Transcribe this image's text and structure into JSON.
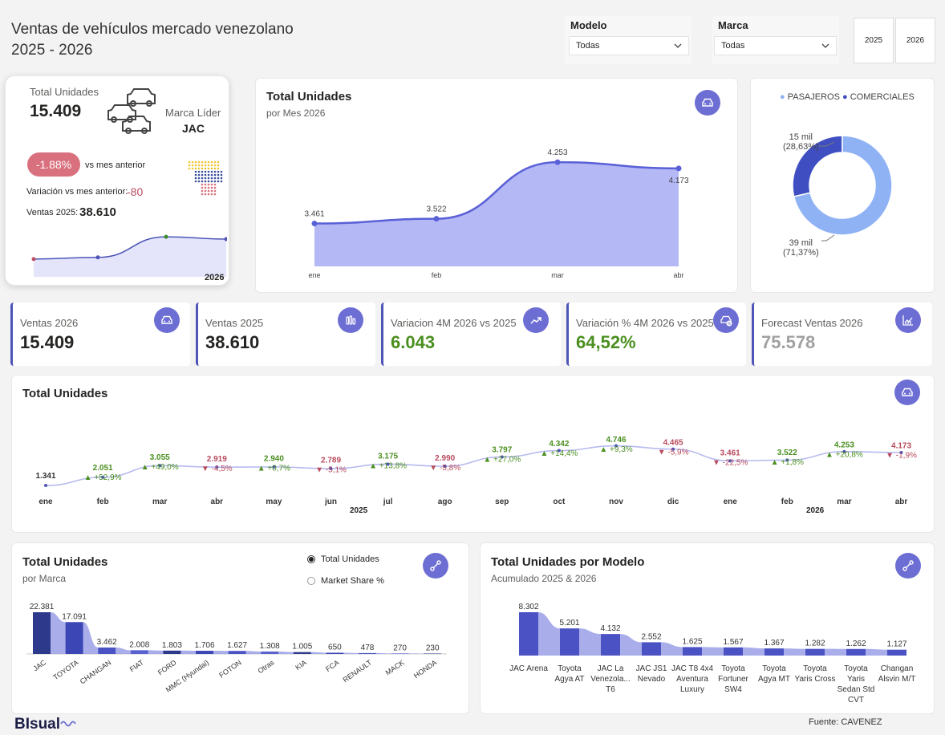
{
  "header": {
    "title_line1": "Ventas de vehículos mercado venezolano",
    "title_line2": "2025 - 2026"
  },
  "filters": {
    "modelo": {
      "label": "Modelo",
      "value": "Todas"
    },
    "marca": {
      "label": "Marca",
      "value": "Todas"
    },
    "years": [
      "2025",
      "2026"
    ]
  },
  "summary": {
    "total_label": "Total Unidades",
    "total_value": "15.409",
    "lider_label": "Marca Líder",
    "lider_value": "JAC",
    "pct_badge": "-1.88%",
    "vs_label": "vs mes anterior",
    "var_label": "Variación vs mes anterior:",
    "var_value": "-80",
    "ventas_label": "Ventas 2025:",
    "ventas_value": "38.610",
    "spark_year": "2026",
    "spark_values": [
      3461,
      3522,
      4253,
      4173
    ]
  },
  "monthly": {
    "title": "Total Unidades",
    "subtitle": "por Mes 2026",
    "labels": [
      "3.461",
      "3.522",
      "4.253",
      "4.173"
    ]
  },
  "donut": {
    "legend": [
      "PASAJEROS",
      "COMERCIALES"
    ],
    "label_comerciales_1": "15 mil",
    "label_comerciales_2": "(28,63%)",
    "label_pasajeros_1": "39 mil",
    "label_pasajeros_2": "(71,37%)"
  },
  "kpis": [
    {
      "label": "Ventas 2026",
      "value": "15.409"
    },
    {
      "label": "Ventas 2025",
      "value": "38.610"
    },
    {
      "label": "Variacion 4M 2026 vs 2025",
      "value": "6.043"
    },
    {
      "label": "Variación % 4M 2026 vs 2025",
      "value": "64,52%"
    },
    {
      "label": "Forecast Ventas 2026",
      "value": "75.578"
    }
  ],
  "timeline": {
    "title": "Total Unidades",
    "year_2025": "2025",
    "year_2026": "2026"
  },
  "brand": {
    "title": "Total Unidades",
    "subtitle": "por Marca",
    "options": [
      "Total Unidades",
      "Market Share %"
    ],
    "selected": 0
  },
  "model": {
    "title": "Total Unidades por Modelo",
    "subtitle": "Acumulado 2025 & 2026"
  },
  "footer": {
    "logo": "BIsual",
    "source": "Fuente: CAVENEZ"
  },
  "colors": {
    "accent": "#6d6ed3",
    "kpi_border": "#4d55b7",
    "area": "#b4b8f5",
    "line": "#5a60d6",
    "donut_pasajeros": "#8fb2f5",
    "donut_comerciales": "#3f4fc1",
    "positive": "#4a8f1f",
    "negative": "#b84a5c",
    "forecast": "#a0a0a0",
    "badge": "#d9707e"
  },
  "chart_data": [
    {
      "type": "area",
      "title": "Total Unidades",
      "subtitle": "por Mes 2026",
      "categories": [
        "ene",
        "feb",
        "mar",
        "abr"
      ],
      "values": [
        3461,
        3522,
        4253,
        4173
      ]
    },
    {
      "type": "pie",
      "series": [
        {
          "name": "PASAJEROS",
          "label": "39 mil",
          "value": 71.37
        },
        {
          "name": "COMERCIALES",
          "label": "15 mil",
          "value": 28.63
        }
      ]
    },
    {
      "type": "line",
      "title": "Total Unidades",
      "categories": [
        "ene",
        "feb",
        "mar",
        "abr",
        "may",
        "jun",
        "jul",
        "ago",
        "sep",
        "oct",
        "nov",
        "dic",
        "ene",
        "feb",
        "mar",
        "abr"
      ],
      "years": [
        "2025",
        "2026"
      ],
      "values": [
        1341,
        2051,
        3055,
        2919,
        2940,
        2789,
        3175,
        2990,
        3797,
        4342,
        4746,
        4465,
        3461,
        3522,
        4253,
        4173
      ],
      "value_labels": [
        "1.341",
        "2.051",
        "3.055",
        "2.919",
        "2.940",
        "2.789",
        "3.175",
        "2.990",
        "3.797",
        "4.342",
        "4.746",
        "4.465",
        "3.461",
        "3.522",
        "4.253",
        "4.173"
      ],
      "change_labels": [
        "",
        "+52,9%",
        "+49,0%",
        "-4,5%",
        "+0,7%",
        "-5,1%",
        "+13,8%",
        "-5,8%",
        "+27,0%",
        "+14,4%",
        "+9,3%",
        "-5,9%",
        "-22,5%",
        "+1,8%",
        "+20,8%",
        "-1,9%"
      ]
    },
    {
      "type": "bar",
      "title": "Total Unidades",
      "subtitle": "por Marca",
      "categories": [
        "JAC",
        "TOYOTA",
        "CHANGAN",
        "FIAT",
        "FORD",
        "MMC (Hyundai)",
        "FOTON",
        "Otras",
        "KIA",
        "FCA",
        "RENAULT",
        "MACK",
        "HONDA"
      ],
      "values": [
        22381,
        17091,
        3462,
        2008,
        1803,
        1706,
        1627,
        1308,
        1005,
        650,
        478,
        270,
        230
      ],
      "value_labels": [
        "22.381",
        "17.091",
        "3.462",
        "2.008",
        "1.803",
        "1.706",
        "1.627",
        "1.308",
        "1.005",
        "650",
        "478",
        "270",
        "230"
      ]
    },
    {
      "type": "bar",
      "title": "Total Unidades por Modelo",
      "subtitle": "Acumulado 2025 & 2026",
      "categories": [
        [
          "JAC Arena"
        ],
        [
          "Toyota",
          "Agya AT"
        ],
        [
          "JAC La",
          "Venezola...",
          "T6"
        ],
        [
          "JAC JS1",
          "Nevado"
        ],
        [
          "JAC T8 4x4",
          "Aventura",
          "Luxury"
        ],
        [
          "Toyota",
          "Fortuner",
          "SW4"
        ],
        [
          "Toyota",
          "Agya MT"
        ],
        [
          "Toyota",
          "Yaris Cross"
        ],
        [
          "Toyota",
          "Yaris",
          "Sedan Std",
          "CVT"
        ],
        [
          "Changan",
          "Alsvin M/T"
        ]
      ],
      "values": [
        8302,
        5201,
        4132,
        2552,
        1625,
        1567,
        1367,
        1282,
        1262,
        1127
      ],
      "value_labels": [
        "8.302",
        "5.201",
        "4.132",
        "2.552",
        "1.625",
        "1.567",
        "1.367",
        "1.282",
        "1.262",
        "1.127"
      ]
    }
  ]
}
